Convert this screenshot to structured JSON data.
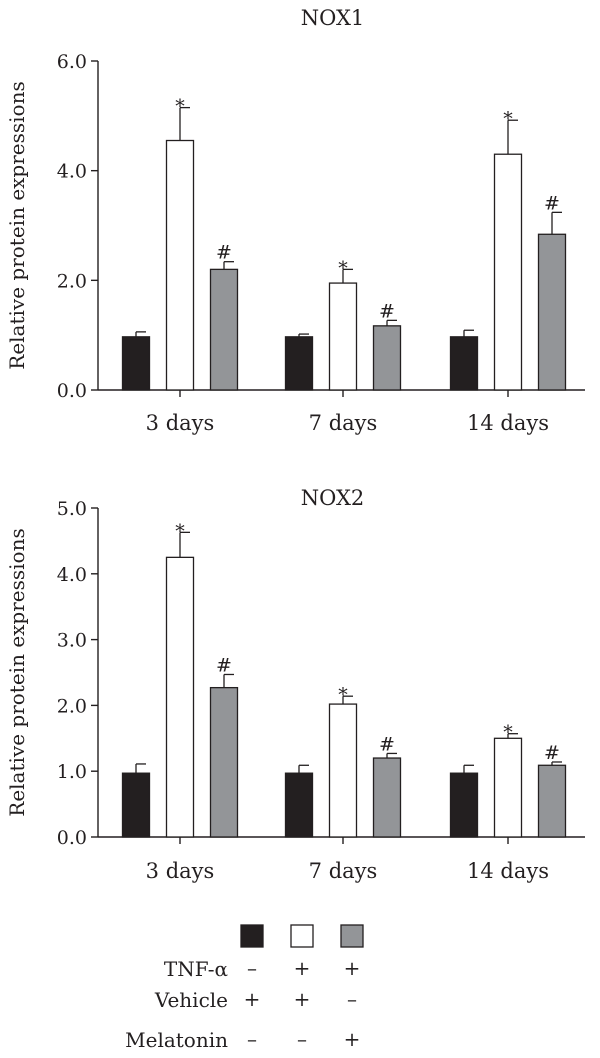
{
  "chart_data": [
    {
      "type": "bar",
      "title": "NOX1",
      "ylabel": "Relative protein expressions",
      "xlabel": "",
      "categories": [
        "3 days",
        "7 days",
        "14 days"
      ],
      "ylim": [
        0,
        6
      ],
      "yticks": [
        "0.0",
        "2.0",
        "4.0",
        "6.0"
      ],
      "ytick_values": [
        0,
        2,
        4,
        6
      ],
      "series": [
        {
          "values": [
            0.97,
            0.97,
            0.97
          ],
          "errors": [
            0.09,
            0.05,
            0.12
          ],
          "marks": [
            "",
            "",
            ""
          ]
        },
        {
          "values": [
            4.55,
            1.95,
            4.3
          ],
          "errors": [
            0.6,
            0.25,
            0.62
          ],
          "marks": [
            "*",
            "*",
            "*"
          ]
        },
        {
          "values": [
            2.2,
            1.17,
            2.84
          ],
          "errors": [
            0.14,
            0.1,
            0.4
          ],
          "marks": [
            "#",
            "#",
            "#"
          ]
        }
      ]
    },
    {
      "type": "bar",
      "title": "NOX2",
      "ylabel": "Relative protein expressions",
      "xlabel": "",
      "categories": [
        "3 days",
        "7 days",
        "14 days"
      ],
      "ylim": [
        0,
        5
      ],
      "yticks": [
        "0.0",
        "1.0",
        "2.0",
        "3.0",
        "4.0",
        "5.0"
      ],
      "ytick_values": [
        0,
        1,
        2,
        3,
        4,
        5
      ],
      "series": [
        {
          "values": [
            0.97,
            0.97,
            0.97
          ],
          "errors": [
            0.14,
            0.12,
            0.12
          ],
          "marks": [
            "",
            "",
            ""
          ]
        },
        {
          "values": [
            4.25,
            2.02,
            1.5
          ],
          "errors": [
            0.38,
            0.12,
            0.07
          ],
          "marks": [
            "*",
            "*",
            "*"
          ]
        },
        {
          "values": [
            2.27,
            1.2,
            1.09
          ],
          "errors": [
            0.2,
            0.07,
            0.05
          ],
          "marks": [
            "#",
            "#",
            "#"
          ]
        }
      ]
    }
  ],
  "legend": {
    "groups": [
      {
        "color": "#231f20"
      },
      {
        "color": "#ffffff"
      },
      {
        "color": "#939598"
      }
    ],
    "rows": [
      {
        "label": "TNF-α",
        "signs": [
          "–",
          "+",
          "+"
        ]
      },
      {
        "label": "Vehicle",
        "signs": [
          "+",
          "+",
          "–"
        ]
      },
      {
        "label": "Melatonin",
        "signs": [
          "–",
          "–",
          "+"
        ]
      }
    ]
  },
  "colors": {
    "axis": "#231f20",
    "bar_outline": "#231f20"
  }
}
